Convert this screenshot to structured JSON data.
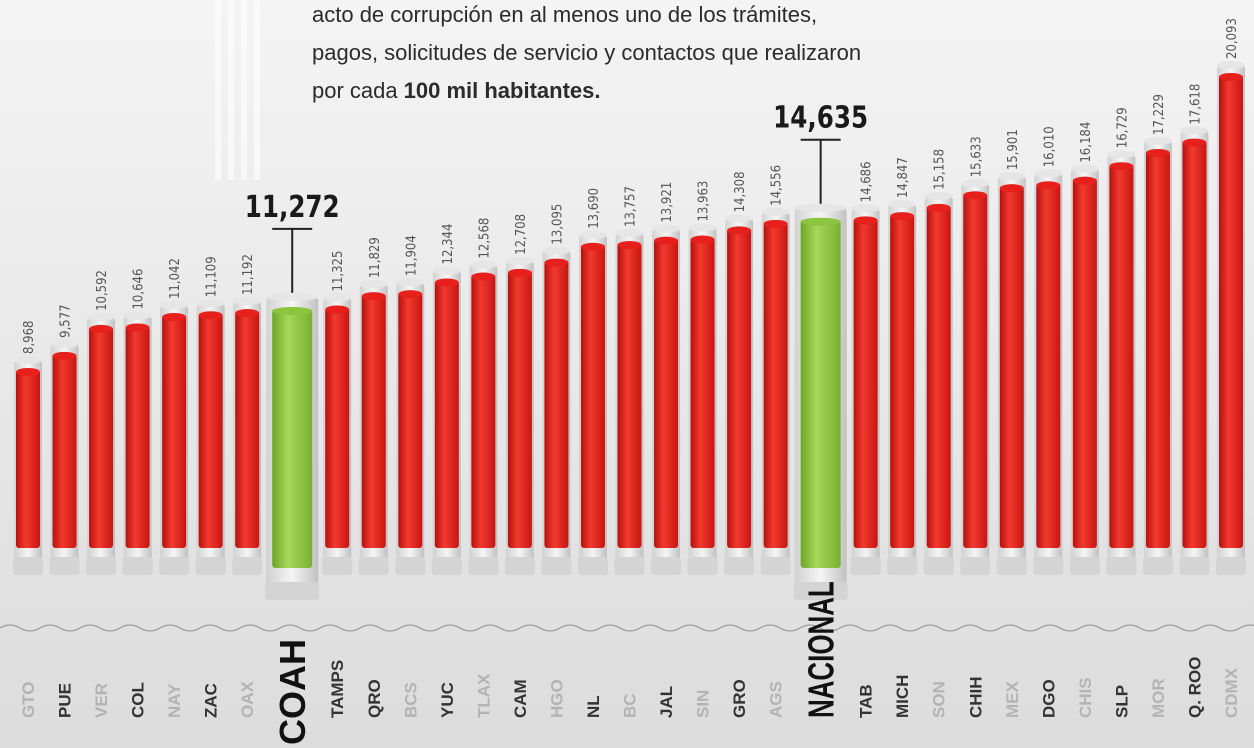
{
  "chart_data": {
    "type": "bar",
    "subtitle_lines": [
      "acto de corrupción en al menos uno de los trámites,",
      "pagos, solicitudes de servicio y contactos que realizaron",
      "por cada"
    ],
    "subtitle_bold": "100 mil habitantes.",
    "categories": [
      "GTO",
      "PUE",
      "VER",
      "COL",
      "NAY",
      "ZAC",
      "OAX",
      "COAH",
      "TAMPS",
      "QRO",
      "BCS",
      "YUC",
      "TLAX",
      "CAM",
      "HGO",
      "NL",
      "BC",
      "JAL",
      "SIN",
      "GRO",
      "AGS",
      "NACIONAL",
      "TAB",
      "MICH",
      "SON",
      "CHIH",
      "MEX",
      "DGO",
      "CHIS",
      "SLP",
      "MOR",
      "Q. ROO",
      "CDMX"
    ],
    "values": [
      8968,
      9577,
      10592,
      10646,
      11042,
      11109,
      11192,
      11272,
      11325,
      11829,
      11904,
      12344,
      12568,
      12708,
      13095,
      13690,
      13757,
      13921,
      13963,
      14308,
      14556,
      14635,
      14686,
      14847,
      15158,
      15633,
      15901,
      16010,
      16184,
      16729,
      17229,
      17618,
      20093
    ],
    "value_labels": [
      "8,968",
      "9,577",
      "10,592",
      "10,646",
      "11,042",
      "11,109",
      "11,192",
      "11,272",
      "11,325",
      "11,829",
      "11,904",
      "12,344",
      "12,568",
      "12,708",
      "13,095",
      "13,690",
      "13,757",
      "13,921",
      "13,963",
      "14,308",
      "14,556",
      "14,635",
      "14,686",
      "14,847",
      "15,158",
      "15,633",
      "15,901",
      "16,010",
      "16,184",
      "16,729",
      "17,229",
      "17,618",
      "20,093"
    ],
    "color": "#e8201c",
    "highlight_color": "#8cc63f",
    "highlight": [
      "COAH",
      "NACIONAL"
    ],
    "label_colors": [
      "#b3b3b3",
      "#333333"
    ]
  }
}
